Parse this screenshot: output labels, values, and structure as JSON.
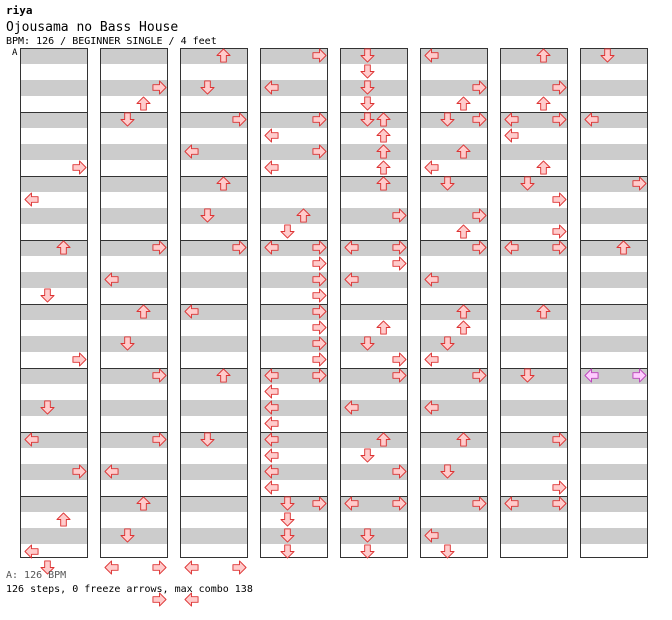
{
  "header": {
    "author": "riya",
    "title": "Ojousama no Bass House",
    "info": "BPM: 126 / BEGINNER SINGLE / 4 feet",
    "section_marker": "A"
  },
  "footer": {
    "bpm_line": "A: 126 BPM",
    "summary": "126 steps, 0 freeze arrows, max combo 138"
  },
  "colors": {
    "arrow_fill": "#ffcccc",
    "arrow_stroke": "#dd3333",
    "special_fill": "#ffccff",
    "special_stroke": "#bb44bb",
    "band": "#cccccc"
  },
  "columns": [
    [
      [
        7,
        3
      ],
      [
        9,
        0
      ],
      [
        12,
        2
      ],
      [
        15,
        1
      ],
      [
        19,
        3
      ],
      [
        22,
        1
      ],
      [
        24,
        0
      ],
      [
        26,
        3
      ],
      [
        29,
        2
      ],
      [
        31,
        0
      ],
      [
        32,
        1
      ]
    ],
    [
      [
        2,
        3
      ],
      [
        3,
        2
      ],
      [
        4,
        1
      ],
      [
        12,
        3
      ],
      [
        14,
        0
      ],
      [
        16,
        2
      ],
      [
        18,
        1
      ],
      [
        20,
        3
      ],
      [
        24,
        3
      ],
      [
        26,
        0
      ],
      [
        28,
        2
      ],
      [
        30,
        1
      ],
      [
        32,
        0
      ],
      [
        32,
        3
      ],
      [
        34,
        3
      ]
    ],
    [
      [
        0,
        2
      ],
      [
        2,
        1
      ],
      [
        4,
        3
      ],
      [
        6,
        0
      ],
      [
        8,
        2
      ],
      [
        10,
        1
      ],
      [
        12,
        3
      ],
      [
        16,
        0
      ],
      [
        20,
        2
      ],
      [
        24,
        1
      ],
      [
        32,
        0
      ],
      [
        32,
        3
      ],
      [
        34,
        0
      ]
    ],
    [
      [
        0,
        3
      ],
      [
        2,
        0
      ],
      [
        4,
        3
      ],
      [
        5,
        0
      ],
      [
        6,
        3
      ],
      [
        7,
        0
      ],
      [
        10,
        2
      ],
      [
        11,
        1
      ],
      [
        12,
        0
      ],
      [
        12,
        3
      ],
      [
        13,
        3
      ],
      [
        14,
        3
      ],
      [
        15,
        3
      ],
      [
        16,
        3
      ],
      [
        17,
        3
      ],
      [
        18,
        3
      ],
      [
        19,
        3
      ],
      [
        20,
        0
      ],
      [
        20,
        3
      ],
      [
        21,
        0
      ],
      [
        22,
        0
      ],
      [
        23,
        0
      ],
      [
        24,
        0
      ],
      [
        25,
        0
      ],
      [
        26,
        0
      ],
      [
        27,
        0
      ],
      [
        28,
        1
      ],
      [
        28,
        3
      ],
      [
        29,
        1
      ],
      [
        30,
        1
      ],
      [
        31,
        1
      ]
    ],
    [
      [
        0,
        1
      ],
      [
        1,
        1
      ],
      [
        2,
        1
      ],
      [
        3,
        1
      ],
      [
        4,
        1
      ],
      [
        4,
        2
      ],
      [
        5,
        2
      ],
      [
        6,
        2
      ],
      [
        7,
        2
      ],
      [
        8,
        2
      ],
      [
        10,
        3
      ],
      [
        12,
        0
      ],
      [
        12,
        3
      ],
      [
        13,
        3
      ],
      [
        14,
        0
      ],
      [
        17,
        2
      ],
      [
        18,
        1
      ],
      [
        19,
        3
      ],
      [
        20,
        3
      ],
      [
        22,
        0
      ],
      [
        24,
        2
      ],
      [
        25,
        1
      ],
      [
        26,
        3
      ],
      [
        28,
        0
      ],
      [
        28,
        3
      ],
      [
        30,
        1
      ],
      [
        31,
        1
      ]
    ],
    [
      [
        0,
        0
      ],
      [
        2,
        3
      ],
      [
        3,
        2
      ],
      [
        4,
        1
      ],
      [
        4,
        3
      ],
      [
        6,
        2
      ],
      [
        7,
        0
      ],
      [
        8,
        1
      ],
      [
        10,
        3
      ],
      [
        11,
        2
      ],
      [
        12,
        3
      ],
      [
        14,
        0
      ],
      [
        16,
        2
      ],
      [
        17,
        2
      ],
      [
        18,
        1
      ],
      [
        19,
        0
      ],
      [
        20,
        3
      ],
      [
        22,
        0
      ],
      [
        24,
        2
      ],
      [
        26,
        1
      ],
      [
        28,
        3
      ],
      [
        30,
        0
      ],
      [
        31,
        1
      ]
    ],
    [
      [
        0,
        2
      ],
      [
        2,
        3
      ],
      [
        3,
        2
      ],
      [
        4,
        0
      ],
      [
        4,
        3
      ],
      [
        5,
        0
      ],
      [
        7,
        2
      ],
      [
        8,
        1
      ],
      [
        9,
        3
      ],
      [
        11,
        3
      ],
      [
        12,
        0
      ],
      [
        12,
        3
      ],
      [
        16,
        2
      ],
      [
        20,
        1
      ],
      [
        24,
        3
      ],
      [
        27,
        3
      ],
      [
        28,
        0
      ],
      [
        28,
        3
      ]
    ],
    [
      [
        0,
        1
      ],
      [
        4,
        0
      ],
      [
        8,
        3
      ],
      [
        12,
        2
      ],
      [
        20,
        0,
        "s"
      ],
      [
        20,
        3,
        "s"
      ]
    ]
  ]
}
